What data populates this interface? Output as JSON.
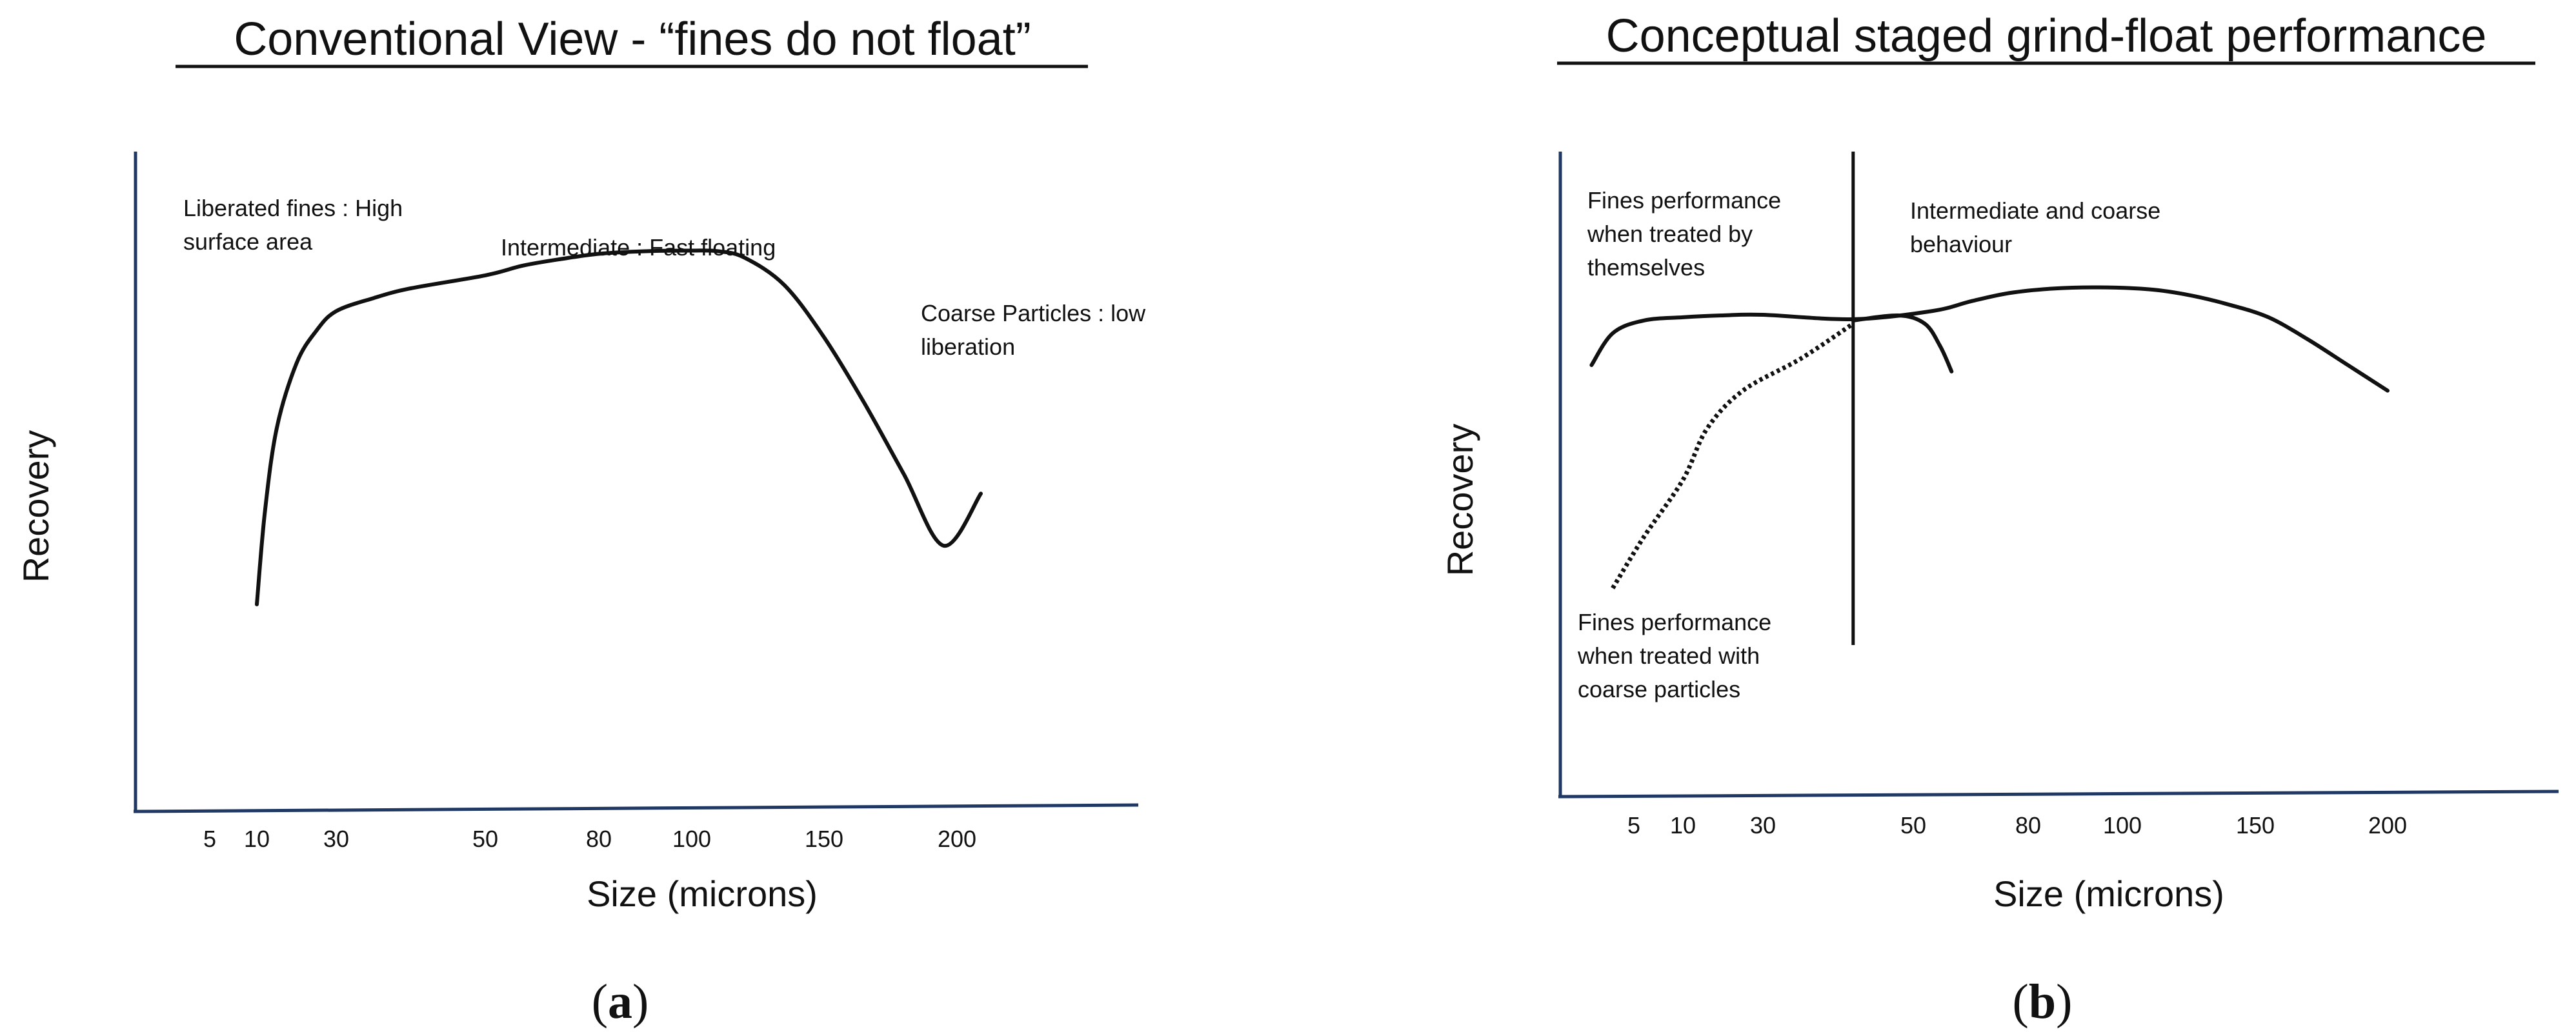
{
  "chart_data": [
    {
      "type": "line",
      "panel_label": {
        "open": "(",
        "letter": "a",
        "close": ")"
      },
      "title": "Conventional View - “fines do not float”",
      "xlabel": "Size (microns)",
      "ylabel": "Recovery",
      "grid": false,
      "x_ticks": [
        "5",
        "10",
        "30",
        "50",
        "80",
        "100",
        "150",
        "200"
      ],
      "ylim": [
        0,
        100
      ],
      "annotations": [
        {
          "id": "fines",
          "lines": [
            "Liberated fines : High",
            "surface area"
          ]
        },
        {
          "id": "intermediate",
          "lines": [
            "Intermediate : Fast floating"
          ]
        },
        {
          "id": "coarse",
          "lines": [
            "Coarse Particles : low",
            "liberation"
          ]
        }
      ],
      "series": [
        {
          "style": "solid",
          "points": [
            [
              10,
              31
            ],
            [
              12,
              45
            ],
            [
              15,
              58
            ],
            [
              20,
              68
            ],
            [
              25,
              73
            ],
            [
              30,
              76
            ],
            [
              35,
              78
            ],
            [
              40,
              79.5
            ],
            [
              50,
              81.5
            ],
            [
              60,
              83
            ],
            [
              70,
              84
            ],
            [
              80,
              84.8
            ],
            [
              90,
              85.2
            ],
            [
              100,
              85.3
            ],
            [
              110,
              85.2
            ],
            [
              120,
              84.2
            ],
            [
              135,
              80
            ],
            [
              150,
              72
            ],
            [
              165,
              62
            ],
            [
              180,
              51
            ],
            [
              195,
              40
            ],
            [
              210,
              48
            ]
          ]
        }
      ]
    },
    {
      "type": "line",
      "panel_label": {
        "open": "(",
        "letter": "b",
        "close": ")"
      },
      "title": "Conceptual staged grind-float performance",
      "xlabel": "Size (microns)",
      "ylabel": "Recovery",
      "grid": false,
      "x_ticks": [
        "5",
        "10",
        "30",
        "50",
        "80",
        "100",
        "150",
        "200"
      ],
      "ylim": [
        0,
        100
      ],
      "divider_x": 42,
      "annotations": [
        {
          "id": "fines-alone",
          "lines": [
            "Fines performance",
            "when treated by",
            "themselves"
          ]
        },
        {
          "id": "int-coarse",
          "lines": [
            "Intermediate and coarse",
            "behaviour"
          ]
        },
        {
          "id": "fines-with-coarse",
          "lines": [
            "Fines performance",
            "when treated with",
            "coarse particles"
          ]
        }
      ],
      "series": [
        {
          "style": "solid",
          "points": [
            [
              1,
              67
            ],
            [
              3,
              72
            ],
            [
              6,
              74
            ],
            [
              10,
              74.5
            ],
            [
              20,
              74.8
            ],
            [
              30,
              74.9
            ],
            [
              42,
              74.2
            ],
            [
              55,
              75.5
            ],
            [
              65,
              77
            ],
            [
              75,
              78.3
            ],
            [
              85,
              79
            ],
            [
              95,
              79.2
            ],
            [
              110,
              78.9
            ],
            [
              125,
              78
            ],
            [
              140,
              76.5
            ],
            [
              155,
              74.5
            ],
            [
              170,
              71
            ],
            [
              185,
              67
            ],
            [
              200,
              63
            ]
          ]
        },
        {
          "style": "solid",
          "points": [
            [
              42,
              74
            ],
            [
              48,
              74.8
            ],
            [
              53,
              73.5
            ],
            [
              57,
              70
            ],
            [
              60,
              66
            ]
          ]
        },
        {
          "style": "dotted",
          "points": [
            [
              3,
              32
            ],
            [
              6,
              40
            ],
            [
              10,
              49
            ],
            [
              16,
              57
            ],
            [
              25,
              63
            ],
            [
              35,
              68
            ],
            [
              42,
              73.5
            ]
          ]
        }
      ]
    }
  ]
}
